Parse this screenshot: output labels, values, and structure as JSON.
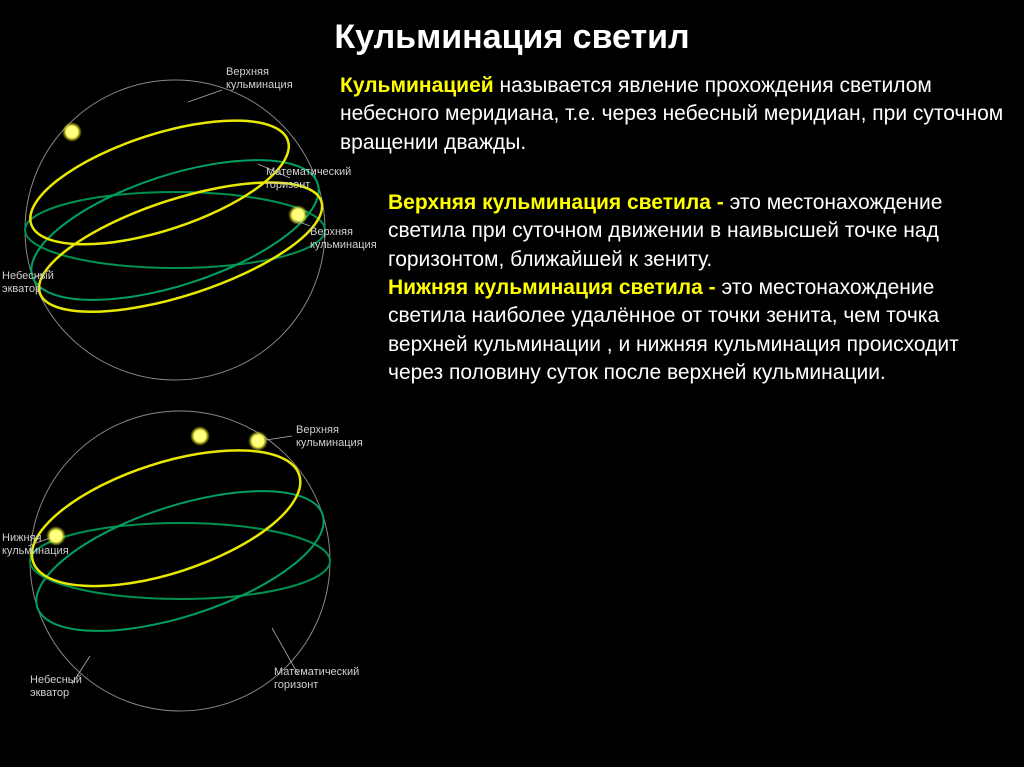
{
  "title": "Кульминация светил",
  "intro": {
    "term": "Кульминацией",
    "text": " называется явление прохождения светилом небесного меридиана, т.е. через небесный меридиан, при суточном вращении дважды."
  },
  "upper": {
    "term": "Верхняя кульминация светила -",
    "text": " это местонахождение светила при суточном движении в наивысшей точке над горизонтом, ближайшей к зениту."
  },
  "lower": {
    "term": "Нижняя кульминация светила -",
    "text": " это местонахождение светила наиболее удалённое от точки зенита, чем точка верхней кульминации , и нижняя кульминация происходит через половину суток после верхней кульминации."
  },
  "diag1": {
    "labels": {
      "upper1": "Верхняя\nкульминация",
      "horizon": "Математический\nгоризонт",
      "upper2": "Верхняя\nкульминация",
      "equator": "Небесный\nэкватор"
    }
  },
  "diag2": {
    "labels": {
      "upper": "Верхняя\nкульминация",
      "lower": "Нижняя\nкульминация",
      "horizon": "Математический\nгоризонт",
      "equator": "Небесный\nэкватор"
    }
  },
  "style": {
    "bg": "#000000",
    "title_color": "#ffffff",
    "highlight_color": "#ffff00",
    "body_color": "#ffffff",
    "label_color": "#d0d0d0",
    "title_fontsize": 34,
    "body_fontsize": 21,
    "label_fontsize": 11,
    "sphere_stroke": "#888888",
    "sphere_stroke_width": 1,
    "yellow_orbit": "#e8e800",
    "green_equator": "#00a060",
    "green_horizon": "#009050",
    "star_fill": "#ffff80",
    "star_glow": "#c8c800",
    "sphere_r": 150
  }
}
